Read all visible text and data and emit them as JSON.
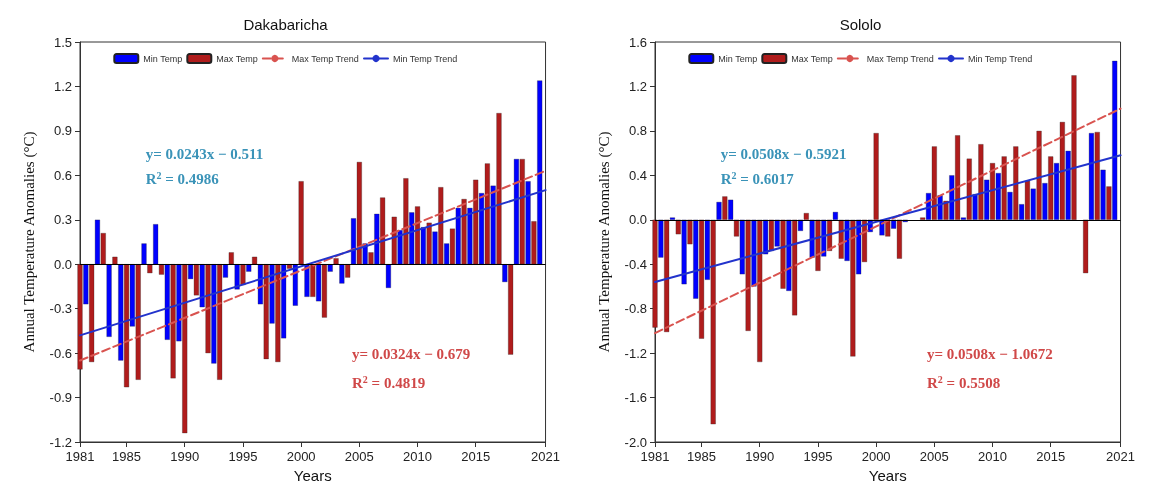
{
  "chart_data": [
    {
      "type": "bar",
      "title": "Dakabaricha",
      "xlabel": "Years",
      "ylabel": "Annual Temperature Anomalies (°C)",
      "xlim": [
        1981,
        2021
      ],
      "xticks": [
        1981,
        1985,
        1990,
        1995,
        2000,
        2005,
        2010,
        2015,
        2021
      ],
      "ylim": [
        -1.2,
        1.5
      ],
      "yticks": [
        {
          "value": -1.2,
          "label": "-1.2"
        },
        {
          "value": -0.9,
          "label": "-0.9"
        },
        {
          "value": -0.6,
          "label": "-0.6"
        },
        {
          "value": -0.3,
          "label": "-0.3"
        },
        {
          "value": 0,
          "label": "0.0"
        },
        0.3,
        0.6,
        0.9,
        1.2,
        1.5
      ],
      "grid": false,
      "legend": "top",
      "marker": "none",
      "ref_lines": [
        {
          "axis": "y",
          "value": 0,
          "color": "#000000"
        }
      ],
      "annotations": [
        "y= 0.0243x − 0.511",
        "R$^{2}$ = 0.4986",
        "y= 0.0324x − 0.679",
        "R$^{2}$ = 0.4819"
      ],
      "series": [
        {
          "name": "Min Temp",
          "color": "#0000ff",
          "x": [
            1981.5,
            1982.5,
            1983.5,
            1984.5,
            1985.5,
            1986.5,
            1987.5,
            1988.5,
            1989.5,
            1990.5,
            1991.5,
            1992.5,
            1993.5,
            1994.5,
            1995.5,
            1996.5,
            1997.5,
            1998.5,
            1999.5,
            2000.5,
            2001.5,
            2002.5,
            2003.5,
            2004.5,
            2005.5,
            2006.5,
            2007.5,
            2008.5,
            2009.5,
            2010.5,
            2011.5,
            2012.5,
            2013.5,
            2014.5,
            2015.5,
            2016.5,
            2017.5,
            2018.5,
            2019.5,
            2020.5
          ],
          "values": [
            -0.27,
            0.3,
            -0.49,
            -0.65,
            -0.42,
            0.14,
            0.27,
            -0.51,
            -0.52,
            -0.1,
            -0.29,
            -0.67,
            -0.09,
            -0.17,
            -0.05,
            -0.27,
            -0.4,
            -0.5,
            -0.28,
            -0.22,
            -0.25,
            -0.05,
            -0.13,
            0.31,
            0.14,
            0.34,
            -0.16,
            0.23,
            0.35,
            0.25,
            0.22,
            0.14,
            0.38,
            0.38,
            0.48,
            0.53,
            -0.12,
            0.71,
            0.56,
            1.24
          ]
        },
        {
          "name": "Max Temp",
          "color": "#b01c1c",
          "x": [
            1981,
            1982,
            1983,
            1984,
            1985,
            1986,
            1987,
            1988,
            1989,
            1990,
            1991,
            1992,
            1993,
            1994,
            1995,
            1996,
            1997,
            1998,
            1999,
            2000,
            2001,
            2002,
            2003,
            2004,
            2005,
            2006,
            2007,
            2008,
            2009,
            2010,
            2011,
            2012,
            2013,
            2014,
            2015,
            2016,
            2017,
            2018,
            2019,
            2020
          ],
          "values": [
            -0.71,
            -0.66,
            0.21,
            0.05,
            -0.83,
            -0.78,
            -0.06,
            -0.07,
            -0.77,
            -1.14,
            -0.21,
            -0.6,
            -0.78,
            0.08,
            -0.14,
            0.05,
            -0.64,
            -0.66,
            -0.03,
            0.56,
            -0.22,
            -0.36,
            0.04,
            -0.09,
            0.69,
            0.08,
            0.45,
            0.32,
            0.58,
            0.39,
            0.28,
            0.52,
            0.24,
            0.44,
            0.57,
            0.68,
            1.02,
            -0.61,
            0.71,
            0.29
          ]
        },
        {
          "name": "Max Temp Trend",
          "type": "line",
          "color": "#d9534f",
          "line_style": "dashed",
          "x": [
            1981,
            2021
          ],
          "values": [
            -0.65,
            0.63
          ]
        },
        {
          "name": "Min Temp Trend",
          "type": "line",
          "color": "#2233cc",
          "line_style": "solid",
          "x": [
            1981,
            2021
          ],
          "values": [
            -0.48,
            0.5
          ]
        }
      ]
    },
    {
      "type": "bar",
      "title": "Sololo",
      "xlabel": "Years",
      "ylabel": "Annual Temperature Anomalies (°C)",
      "xlim": [
        1981,
        2021
      ],
      "xticks": [
        1981,
        1985,
        1990,
        1995,
        2000,
        2005,
        2010,
        2015,
        2021
      ],
      "ylim": [
        -2.0,
        1.6
      ],
      "yticks": [
        {
          "value": -2,
          "label": "-2.0"
        },
        {
          "value": -1.6,
          "label": "-1.6"
        },
        {
          "value": -1.2,
          "label": "-1.2"
        },
        {
          "value": -0.8,
          "label": "-0.8"
        },
        {
          "value": -0.4,
          "label": "-0.4"
        },
        {
          "value": 0,
          "label": "0.0"
        },
        0.4,
        0.8,
        1.2,
        1.6
      ],
      "grid": false,
      "legend": "top",
      "marker": "none",
      "ref_lines": [
        {
          "axis": "y",
          "value": 0,
          "color": "#000000"
        }
      ],
      "annotations": [
        "y= 0.0508x − 0.5921",
        "R$^{2}$ = 0.6017",
        "y= 0.0508x − 1.0672",
        "R$^{2}$ = 0.5508"
      ],
      "series": [
        {
          "name": "Min Temp",
          "color": "#0000ff",
          "x": [
            1981.5,
            1982.5,
            1983.5,
            1984.5,
            1985.5,
            1986.5,
            1987.5,
            1988.5,
            1989.5,
            1990.5,
            1991.5,
            1992.5,
            1993.5,
            1994.5,
            1995.5,
            1996.5,
            1997.5,
            1998.5,
            1999.5,
            2000.5,
            2001.5,
            2002.5,
            2003.5,
            2004.5,
            2005.5,
            2006.5,
            2007.5,
            2008.5,
            2009.5,
            2010.5,
            2011.5,
            2012.5,
            2013.5,
            2014.5,
            2015.5,
            2016.5,
            2017.5,
            2018.5,
            2019.5,
            2020.5
          ],
          "values": [
            -0.34,
            0.02,
            -0.58,
            -0.71,
            -0.54,
            0.16,
            0.18,
            -0.49,
            -0.6,
            -0.31,
            -0.24,
            -0.64,
            -0.1,
            -0.34,
            -0.33,
            0.07,
            -0.37,
            -0.49,
            -0.11,
            -0.14,
            -0.08,
            -0.02,
            null,
            0.24,
            0.22,
            0.4,
            0.02,
            0.23,
            0.36,
            0.42,
            0.25,
            0.14,
            0.28,
            0.33,
            0.51,
            0.62,
            null,
            0.78,
            0.45,
            1.43
          ]
        },
        {
          "name": "Max Temp",
          "color": "#b01c1c",
          "x": [
            1981,
            1982,
            1983,
            1984,
            1985,
            1986,
            1987,
            1988,
            1989,
            1990,
            1991,
            1992,
            1993,
            1994,
            1995,
            1996,
            1997,
            1998,
            1999,
            2000,
            2001,
            2002,
            2003,
            2004,
            2005,
            2006,
            2007,
            2008,
            2009,
            2010,
            2011,
            2012,
            2013,
            2014,
            2015,
            2016,
            2017,
            2018,
            2019,
            2020
          ],
          "values": [
            -0.97,
            -1.01,
            -0.13,
            -0.22,
            -1.07,
            -1.84,
            0.21,
            -0.15,
            -1.0,
            -1.28,
            -0.28,
            -0.62,
            -0.86,
            0.06,
            -0.46,
            -0.28,
            -0.35,
            -1.23,
            -0.38,
            0.78,
            -0.15,
            -0.35,
            null,
            0.02,
            0.66,
            0.17,
            0.76,
            0.55,
            0.68,
            0.51,
            0.57,
            0.66,
            0.35,
            0.8,
            0.57,
            0.88,
            1.3,
            -0.48,
            0.79,
            0.3
          ]
        },
        {
          "name": "Max Temp Trend",
          "type": "line",
          "color": "#d9534f",
          "line_style": "dashed",
          "x": [
            1981,
            2021
          ],
          "values": [
            -1.02,
            1.0
          ]
        },
        {
          "name": "Min Temp Trend",
          "type": "line",
          "color": "#2233cc",
          "line_style": "solid",
          "x": [
            1981,
            2021
          ],
          "values": [
            -0.56,
            0.58
          ]
        }
      ]
    }
  ]
}
